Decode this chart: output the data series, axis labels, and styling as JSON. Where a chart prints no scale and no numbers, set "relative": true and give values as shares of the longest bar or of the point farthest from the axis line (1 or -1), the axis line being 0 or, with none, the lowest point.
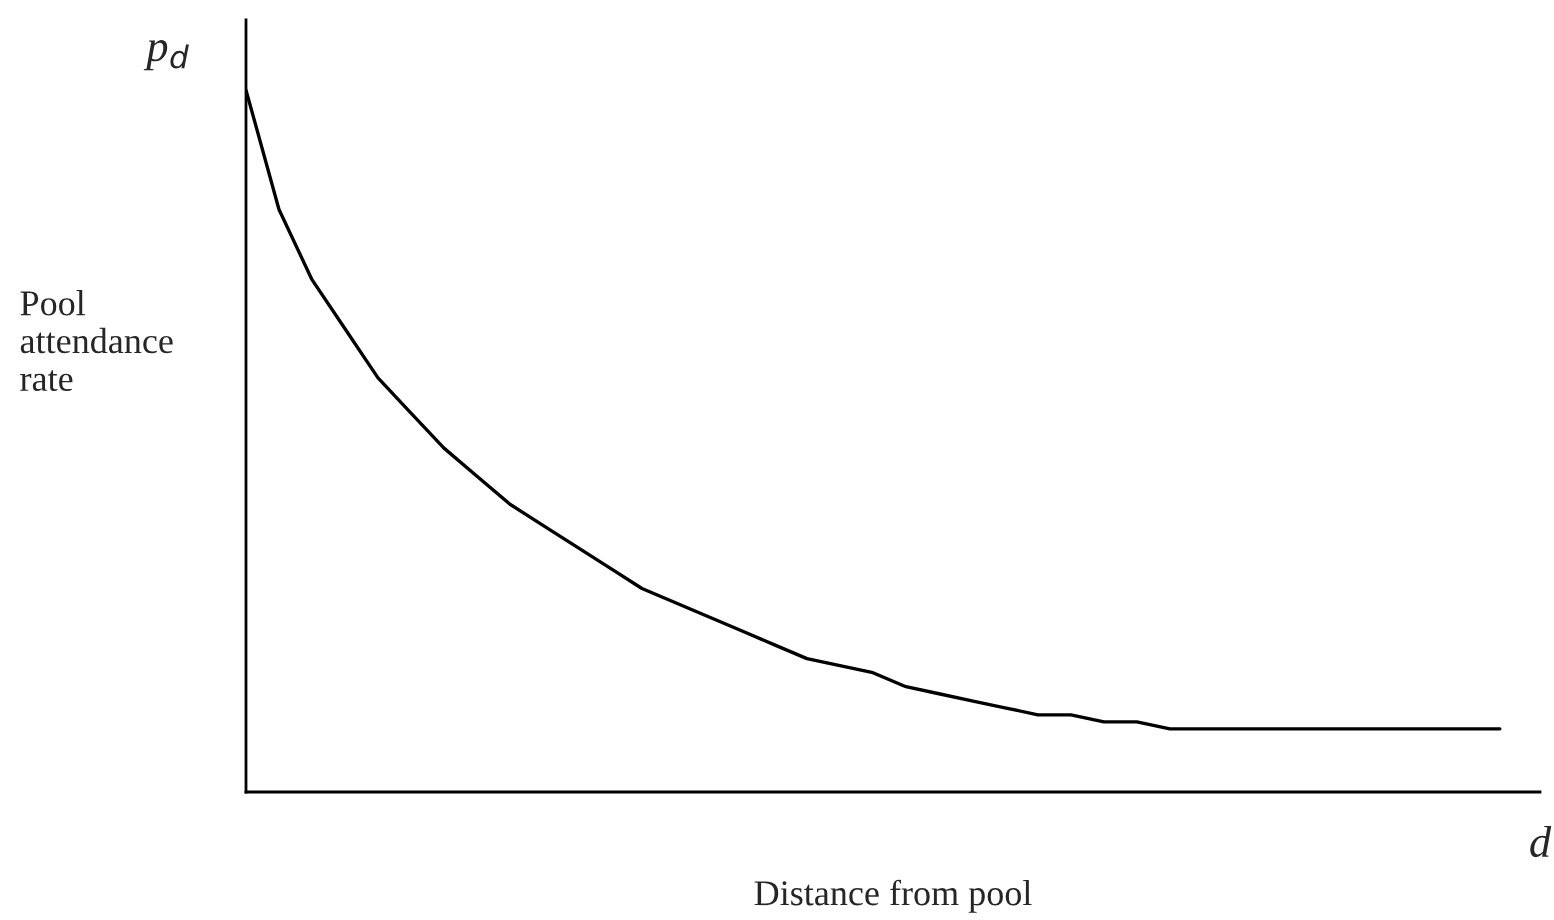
{
  "chart_data": {
    "type": "line",
    "relative": true,
    "xlabel": "Distance from pool",
    "ylabel": "Pool attendance rate",
    "annotations": [
      "p$_{d}$",
      "d"
    ],
    "categories": [
      null,
      null,
      null,
      null,
      null,
      null,
      null,
      null,
      null,
      null,
      null,
      null,
      null,
      null,
      null,
      null,
      null,
      null,
      null,
      null,
      null,
      null,
      null,
      null,
      null,
      null,
      null,
      null,
      null,
      null,
      null,
      null,
      null,
      null,
      null,
      null,
      null,
      null,
      null
    ],
    "series": [
      {
        "color": "#000000",
        "values": [
          1.0,
          0.83,
          0.73,
          0.66,
          0.59,
          0.54,
          0.49,
          0.45,
          0.41,
          0.38,
          0.35,
          0.32,
          0.29,
          0.27,
          0.25,
          0.23,
          0.21,
          0.19,
          0.18,
          0.17,
          0.15,
          0.14,
          0.13,
          0.12,
          0.11,
          0.11,
          0.1,
          0.1,
          0.09,
          0.09,
          0.09,
          0.09,
          0.09,
          0.09,
          0.09,
          0.09,
          0.09,
          0.09,
          0.09
        ]
      }
    ],
    "legend": false,
    "marker": "none",
    "line_style": "solid"
  }
}
